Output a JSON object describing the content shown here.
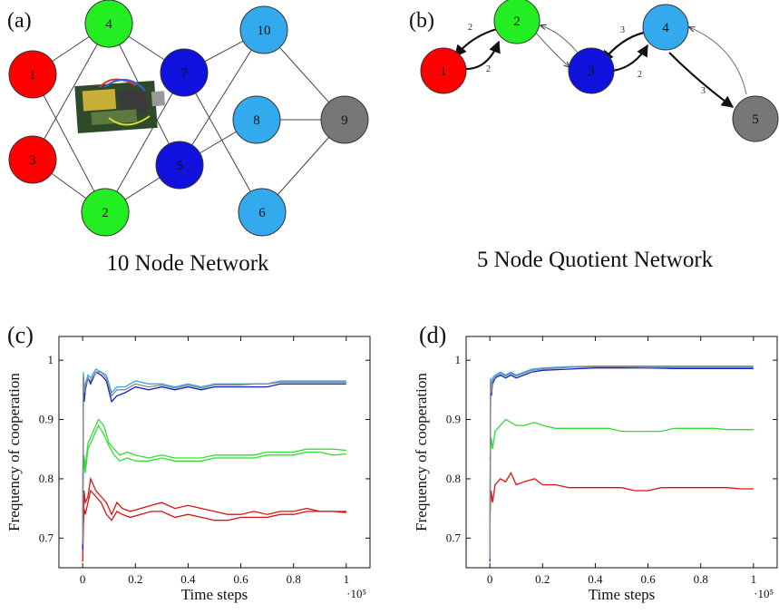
{
  "panel_a": {
    "label": "(a)",
    "caption": "10 Node Network",
    "nodes": [
      {
        "id": "1",
        "color": "#ff0000"
      },
      {
        "id": "2",
        "color": "#22ee22"
      },
      {
        "id": "3",
        "color": "#ff0000"
      },
      {
        "id": "4",
        "color": "#22ee22"
      },
      {
        "id": "5",
        "color": "#1111dd"
      },
      {
        "id": "6",
        "color": "#33aaee"
      },
      {
        "id": "7",
        "color": "#1111dd"
      },
      {
        "id": "8",
        "color": "#33aaee"
      },
      {
        "id": "9",
        "color": "#777777"
      },
      {
        "id": "10",
        "color": "#33aaee"
      }
    ],
    "edges": [
      [
        "1",
        "4"
      ],
      [
        "1",
        "2"
      ],
      [
        "3",
        "4"
      ],
      [
        "3",
        "2"
      ],
      [
        "4",
        "7"
      ],
      [
        "4",
        "5"
      ],
      [
        "2",
        "7"
      ],
      [
        "2",
        "5"
      ],
      [
        "7",
        "10"
      ],
      [
        "7",
        "6"
      ],
      [
        "5",
        "10"
      ],
      [
        "5",
        "8"
      ],
      [
        "10",
        "9"
      ],
      [
        "8",
        "9"
      ],
      [
        "6",
        "9"
      ]
    ],
    "image_icon": "circuit-board-photo"
  },
  "panel_b": {
    "label": "(b)",
    "caption": "5 Node Quotient Network",
    "nodes": [
      {
        "id": "1",
        "color": "#ff0000"
      },
      {
        "id": "2",
        "color": "#22ee22"
      },
      {
        "id": "3",
        "color": "#1111dd"
      },
      {
        "id": "4",
        "color": "#33aaee"
      },
      {
        "id": "5",
        "color": "#777777"
      }
    ],
    "edge_weights": {
      "w21": "2",
      "w12": "2",
      "w43": "3",
      "w34": "2",
      "w45": "3"
    }
  },
  "chart_data": [
    {
      "type": "line",
      "panel": "(c)",
      "xlabel": "Time steps",
      "ylabel": "Frequency of cooperation",
      "x_multiplier_label": "·10⁵",
      "xlim": [
        -0.09,
        1.09
      ],
      "ylim": [
        0.65,
        1.04
      ],
      "x_ticks": [
        "0",
        "0.2",
        "0.4",
        "0.6",
        "0.8",
        "1"
      ],
      "y_ticks": [
        "0.7",
        "0.8",
        "0.9",
        "1"
      ],
      "x_tick_values": [
        0,
        0.2,
        0.4,
        0.6,
        0.8,
        1
      ],
      "y_tick_values": [
        0.7,
        0.8,
        0.9,
        1.0
      ],
      "series": [
        {
          "color": "#dd1111",
          "x": [
            0,
            0.005,
            0.01,
            0.02,
            0.03,
            0.05,
            0.07,
            0.09,
            0.11,
            0.13,
            0.15,
            0.18,
            0.22,
            0.26,
            0.3,
            0.35,
            0.4,
            0.45,
            0.5,
            0.55,
            0.6,
            0.65,
            0.7,
            0.75,
            0.8,
            0.85,
            0.9,
            0.95,
            1.0
          ],
          "y": [
            0.66,
            0.78,
            0.76,
            0.77,
            0.8,
            0.78,
            0.77,
            0.76,
            0.74,
            0.76,
            0.75,
            0.745,
            0.75,
            0.755,
            0.76,
            0.75,
            0.755,
            0.75,
            0.745,
            0.74,
            0.74,
            0.745,
            0.74,
            0.745,
            0.745,
            0.75,
            0.745,
            0.745,
            0.745
          ]
        },
        {
          "color": "#dd1111",
          "x": [
            0,
            0.005,
            0.01,
            0.02,
            0.03,
            0.05,
            0.07,
            0.09,
            0.11,
            0.13,
            0.15,
            0.18,
            0.22,
            0.26,
            0.3,
            0.35,
            0.4,
            0.45,
            0.5,
            0.55,
            0.6,
            0.65,
            0.7,
            0.75,
            0.8,
            0.85,
            0.9,
            0.95,
            1.0
          ],
          "y": [
            0.69,
            0.75,
            0.74,
            0.76,
            0.78,
            0.77,
            0.76,
            0.74,
            0.73,
            0.745,
            0.74,
            0.735,
            0.74,
            0.745,
            0.745,
            0.735,
            0.74,
            0.735,
            0.73,
            0.73,
            0.735,
            0.735,
            0.735,
            0.74,
            0.74,
            0.745,
            0.745,
            0.745,
            0.743
          ]
        },
        {
          "color": "#33dd33",
          "x": [
            0,
            0.005,
            0.01,
            0.02,
            0.04,
            0.06,
            0.08,
            0.1,
            0.12,
            0.14,
            0.17,
            0.2,
            0.25,
            0.3,
            0.35,
            0.4,
            0.45,
            0.5,
            0.55,
            0.6,
            0.65,
            0.7,
            0.75,
            0.8,
            0.85,
            0.9,
            0.95,
            1.0
          ],
          "y": [
            0.78,
            0.84,
            0.82,
            0.86,
            0.88,
            0.9,
            0.89,
            0.86,
            0.85,
            0.84,
            0.845,
            0.84,
            0.835,
            0.84,
            0.835,
            0.835,
            0.835,
            0.84,
            0.84,
            0.84,
            0.84,
            0.845,
            0.845,
            0.845,
            0.85,
            0.85,
            0.85,
            0.848
          ]
        },
        {
          "color": "#33dd33",
          "x": [
            0,
            0.005,
            0.01,
            0.02,
            0.04,
            0.06,
            0.08,
            0.1,
            0.12,
            0.14,
            0.17,
            0.2,
            0.25,
            0.3,
            0.35,
            0.4,
            0.45,
            0.5,
            0.55,
            0.6,
            0.65,
            0.7,
            0.75,
            0.8,
            0.85,
            0.9,
            0.95,
            1.0
          ],
          "y": [
            0.8,
            0.83,
            0.81,
            0.85,
            0.87,
            0.89,
            0.875,
            0.855,
            0.84,
            0.83,
            0.835,
            0.83,
            0.83,
            0.835,
            0.83,
            0.83,
            0.83,
            0.835,
            0.835,
            0.835,
            0.835,
            0.84,
            0.84,
            0.84,
            0.845,
            0.845,
            0.84,
            0.842
          ]
        },
        {
          "color": "#1122cc",
          "x": [
            0,
            0.003,
            0.006,
            0.01,
            0.02,
            0.03,
            0.05,
            0.07,
            0.09,
            0.11,
            0.13,
            0.16,
            0.2,
            0.25,
            0.3,
            0.35,
            0.4,
            0.45,
            0.5,
            0.55,
            0.6,
            0.65,
            0.7,
            0.75,
            0.8,
            0.85,
            0.9,
            0.95,
            1.0
          ],
          "y": [
            0.68,
            0.97,
            0.93,
            0.95,
            0.97,
            0.96,
            0.98,
            0.975,
            0.965,
            0.93,
            0.94,
            0.945,
            0.955,
            0.95,
            0.955,
            0.95,
            0.955,
            0.95,
            0.955,
            0.955,
            0.955,
            0.955,
            0.955,
            0.96,
            0.96,
            0.96,
            0.96,
            0.96,
            0.96
          ]
        },
        {
          "color": "#33aaee",
          "x": [
            0,
            0.003,
            0.006,
            0.01,
            0.02,
            0.03,
            0.05,
            0.07,
            0.09,
            0.11,
            0.13,
            0.16,
            0.2,
            0.25,
            0.3,
            0.35,
            0.4,
            0.45,
            0.5,
            0.55,
            0.6,
            0.65,
            0.7,
            0.75,
            0.8,
            0.85,
            0.9,
            0.95,
            1.0
          ],
          "y": [
            0.7,
            0.98,
            0.95,
            0.96,
            0.975,
            0.97,
            0.985,
            0.98,
            0.975,
            0.945,
            0.955,
            0.955,
            0.965,
            0.96,
            0.96,
            0.955,
            0.96,
            0.955,
            0.96,
            0.96,
            0.96,
            0.96,
            0.96,
            0.965,
            0.965,
            0.965,
            0.965,
            0.965,
            0.965
          ]
        },
        {
          "color": "#888888",
          "x": [
            0,
            0.003,
            0.006,
            0.01,
            0.02,
            0.03,
            0.05,
            0.07,
            0.09,
            0.11,
            0.13,
            0.16,
            0.2,
            0.25,
            0.3,
            0.35,
            0.4,
            0.45,
            0.5,
            0.55,
            0.6,
            0.65,
            0.7,
            0.75,
            0.8,
            0.85,
            0.9,
            0.95,
            1.0
          ],
          "y": [
            0.69,
            0.975,
            0.945,
            0.955,
            0.97,
            0.965,
            0.98,
            0.98,
            0.97,
            0.94,
            0.95,
            0.95,
            0.96,
            0.955,
            0.958,
            0.953,
            0.958,
            0.953,
            0.958,
            0.958,
            0.958,
            0.96,
            0.96,
            0.963,
            0.963,
            0.963,
            0.963,
            0.963,
            0.963
          ]
        }
      ]
    },
    {
      "type": "line",
      "panel": "(d)",
      "xlabel": "Time steps",
      "ylabel": "Frequency of cooperation",
      "x_multiplier_label": "·10⁵",
      "xlim": [
        -0.09,
        1.09
      ],
      "ylim": [
        0.65,
        1.04
      ],
      "x_ticks": [
        "0",
        "0.2",
        "0.4",
        "0.6",
        "0.8",
        "1"
      ],
      "y_ticks": [
        "0.7",
        "0.8",
        "0.9",
        "1"
      ],
      "x_tick_values": [
        0,
        0.2,
        0.4,
        0.6,
        0.8,
        1
      ],
      "y_tick_values": [
        0.7,
        0.8,
        0.9,
        1.0
      ],
      "series": [
        {
          "color": "#dd1111",
          "x": [
            0,
            0.005,
            0.01,
            0.02,
            0.04,
            0.06,
            0.08,
            0.1,
            0.13,
            0.17,
            0.2,
            0.25,
            0.3,
            0.35,
            0.4,
            0.45,
            0.5,
            0.55,
            0.6,
            0.65,
            0.7,
            0.75,
            0.8,
            0.85,
            0.9,
            0.95,
            1.0
          ],
          "y": [
            0.74,
            0.78,
            0.76,
            0.79,
            0.8,
            0.795,
            0.81,
            0.79,
            0.795,
            0.8,
            0.79,
            0.79,
            0.785,
            0.785,
            0.785,
            0.785,
            0.785,
            0.78,
            0.78,
            0.785,
            0.785,
            0.785,
            0.785,
            0.785,
            0.785,
            0.783,
            0.783
          ]
        },
        {
          "color": "#33dd33",
          "x": [
            0,
            0.005,
            0.01,
            0.02,
            0.04,
            0.06,
            0.08,
            0.1,
            0.13,
            0.17,
            0.2,
            0.25,
            0.3,
            0.35,
            0.4,
            0.45,
            0.5,
            0.55,
            0.6,
            0.65,
            0.7,
            0.75,
            0.8,
            0.85,
            0.9,
            0.95,
            1.0
          ],
          "y": [
            0.83,
            0.87,
            0.85,
            0.88,
            0.89,
            0.9,
            0.895,
            0.89,
            0.89,
            0.895,
            0.89,
            0.885,
            0.885,
            0.885,
            0.885,
            0.885,
            0.88,
            0.88,
            0.88,
            0.88,
            0.885,
            0.885,
            0.885,
            0.885,
            0.883,
            0.883,
            0.883
          ]
        },
        {
          "color": "#1122cc",
          "x": [
            0,
            0.003,
            0.006,
            0.01,
            0.02,
            0.04,
            0.06,
            0.08,
            0.1,
            0.13,
            0.16,
            0.2,
            0.3,
            0.4,
            0.5,
            0.6,
            0.7,
            0.8,
            0.9,
            1.0
          ],
          "y": [
            0.66,
            0.96,
            0.94,
            0.96,
            0.97,
            0.975,
            0.97,
            0.975,
            0.97,
            0.975,
            0.98,
            0.983,
            0.985,
            0.987,
            0.987,
            0.987,
            0.986,
            0.986,
            0.986,
            0.986
          ]
        },
        {
          "color": "#33aaee",
          "x": [
            0,
            0.003,
            0.006,
            0.01,
            0.02,
            0.04,
            0.06,
            0.08,
            0.1,
            0.13,
            0.16,
            0.2,
            0.3,
            0.4,
            0.5,
            0.6,
            0.7,
            0.8,
            0.9,
            1.0
          ],
          "y": [
            0.67,
            0.97,
            0.95,
            0.97,
            0.975,
            0.98,
            0.975,
            0.98,
            0.975,
            0.98,
            0.985,
            0.987,
            0.989,
            0.99,
            0.99,
            0.99,
            0.99,
            0.99,
            0.99,
            0.99
          ]
        },
        {
          "color": "#888888",
          "x": [
            0,
            0.003,
            0.006,
            0.01,
            0.02,
            0.04,
            0.06,
            0.08,
            0.1,
            0.13,
            0.16,
            0.2,
            0.3,
            0.4,
            0.5,
            0.6,
            0.7,
            0.8,
            0.9,
            1.0
          ],
          "y": [
            0.665,
            0.965,
            0.945,
            0.965,
            0.972,
            0.978,
            0.973,
            0.978,
            0.973,
            0.978,
            0.983,
            0.985,
            0.988,
            0.989,
            0.989,
            0.988,
            0.988,
            0.988,
            0.988,
            0.988
          ]
        }
      ]
    }
  ]
}
